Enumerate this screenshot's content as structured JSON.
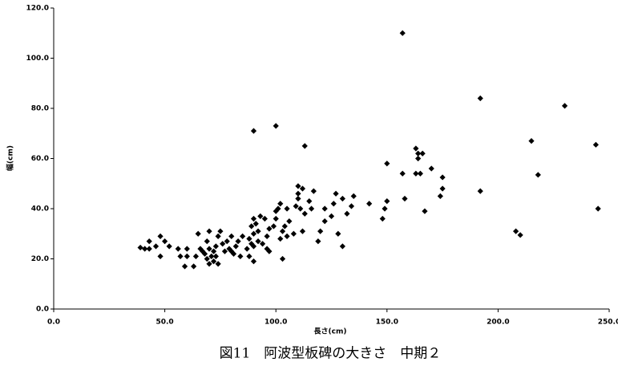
{
  "chart_data": {
    "type": "scatter",
    "title": "図11　阿波型板碑の大きさ　中期２",
    "x_label": "長さ(cm)",
    "y_label": "幅(cm)",
    "color": "#000000",
    "x": [
      157,
      192,
      230,
      244,
      245,
      215,
      218,
      192,
      208,
      210,
      100,
      90,
      113,
      163,
      164,
      166,
      164,
      163,
      165,
      157,
      150,
      170,
      175,
      175,
      174,
      167,
      158,
      150,
      149,
      148,
      142,
      135,
      134,
      132,
      127,
      126,
      125,
      122,
      130,
      128,
      130,
      122,
      120,
      119,
      117,
      115,
      116,
      112,
      110,
      110,
      110,
      111,
      109,
      113,
      112,
      108,
      105,
      106,
      104,
      103,
      102,
      101,
      100,
      100,
      99,
      102,
      103,
      105,
      97,
      96,
      95,
      93,
      90,
      91,
      89,
      92,
      90,
      88,
      89,
      90,
      87,
      92,
      94,
      96,
      97,
      85,
      83,
      82,
      80,
      78,
      79,
      81,
      84,
      88,
      90,
      76,
      77,
      75,
      74,
      73,
      72,
      73,
      72,
      74,
      70,
      69,
      70,
      68,
      69,
      71,
      70,
      65,
      66,
      67,
      64,
      63,
      60,
      60,
      59,
      57,
      56,
      52,
      50,
      48,
      46,
      48,
      43,
      41,
      43,
      39,
      80
    ],
    "values": [
      110,
      84,
      81,
      65.5,
      40,
      67,
      53.5,
      47,
      31,
      29.5,
      73,
      71,
      65,
      64,
      62,
      62,
      60,
      54,
      54,
      54,
      58,
      56,
      52.5,
      48,
      45,
      39,
      44,
      43,
      40,
      36,
      42,
      45,
      41,
      38,
      46,
      42,
      37,
      40,
      44,
      30,
      25,
      35,
      31,
      27,
      47,
      43,
      40,
      48,
      49,
      46,
      44,
      40,
      41,
      38,
      31,
      30,
      40,
      35,
      33,
      31,
      42,
      40,
      39,
      36,
      33,
      28,
      20,
      29,
      32,
      29,
      36,
      37,
      36,
      34,
      33,
      31,
      30,
      28,
      26,
      25,
      24,
      27,
      26,
      24,
      23,
      29,
      27,
      25,
      29,
      27,
      24,
      22,
      21,
      21,
      19,
      26,
      23,
      31,
      29,
      25,
      23,
      21,
      19,
      18,
      31,
      27,
      24,
      22,
      20,
      21,
      18,
      30,
      24,
      23,
      21,
      17,
      21,
      24,
      17,
      21,
      24,
      25,
      27,
      29,
      25,
      21,
      27,
      24,
      24,
      24.5,
      23
    ],
    "xlim": [
      0,
      250
    ],
    "xticks": [
      {
        "value": 0,
        "label": "0.0"
      },
      {
        "value": 50,
        "label": "50.0"
      },
      {
        "value": 100,
        "label": "100.0"
      },
      {
        "value": 150,
        "label": "150.0"
      },
      {
        "value": 200,
        "label": "200.0"
      },
      {
        "value": 250,
        "label": "250.0"
      }
    ],
    "ylim": [
      0,
      120
    ],
    "yticks": [
      {
        "value": 0,
        "label": "0.0"
      },
      {
        "value": 20,
        "label": "20.0"
      },
      {
        "value": 40,
        "label": "40.0"
      },
      {
        "value": 60,
        "label": "60.0"
      },
      {
        "value": 80,
        "label": "80.0"
      },
      {
        "value": 100,
        "label": "100.0"
      },
      {
        "value": 120,
        "label": "120.0"
      }
    ],
    "grid": false
  }
}
